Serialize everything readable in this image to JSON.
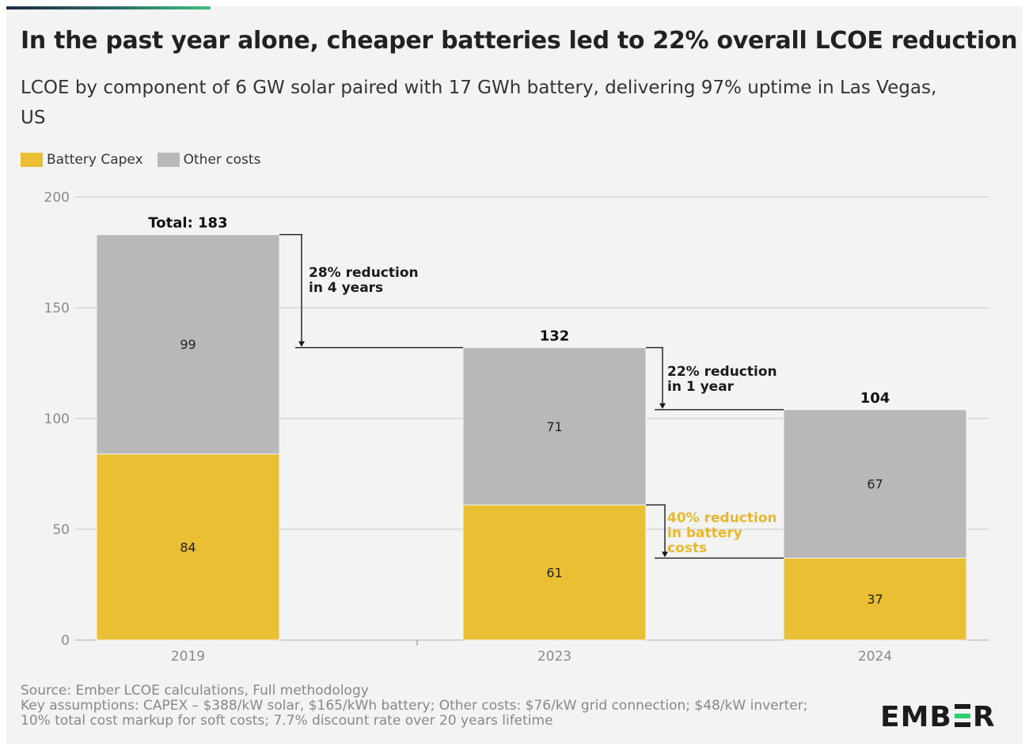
{
  "header": {
    "title": "In the past year alone, cheaper batteries led to 22% overall LCOE reduction",
    "subtitle": "LCOE by component of 6 GW solar paired with 17 GWh battery, delivering 97% uptime in Las Vegas, US"
  },
  "legend": [
    {
      "label": "Battery Capex",
      "color": "#ebbf33"
    },
    {
      "label": "Other costs",
      "color": "#b8b8b8"
    }
  ],
  "chart_data": {
    "type": "bar",
    "stacked": true,
    "categories": [
      "2019",
      "2023",
      "2024"
    ],
    "series": [
      {
        "name": "Battery Capex",
        "values": [
          84,
          61,
          37
        ],
        "color": "#ebbf33"
      },
      {
        "name": "Other costs",
        "values": [
          99,
          71,
          67
        ],
        "color": "#b8b8b8"
      }
    ],
    "totals": [
      183,
      132,
      104
    ],
    "total_labels": [
      "Total: 183",
      "132",
      "104"
    ],
    "ylim": [
      0,
      200
    ],
    "yticks": [
      0,
      50,
      100,
      150,
      200
    ],
    "grid": true,
    "legend_position": "top-left",
    "annotations": [
      {
        "text": "28% reduction\nin 4 years",
        "color": "#1b1b1b",
        "from_value": 183,
        "to_value": 132,
        "between": [
          0,
          1
        ]
      },
      {
        "text": "22% reduction\nin 1 year",
        "color": "#1b1b1b",
        "from_value": 132,
        "to_value": 104,
        "between": [
          1,
          2
        ]
      },
      {
        "text": "40% reduction\nin battery\ncosts",
        "color": "#e8b72a",
        "from_value": 61,
        "to_value": 37,
        "between": [
          1,
          2
        ]
      }
    ]
  },
  "footer": {
    "source": "Source: Ember LCOE calculations, Full methodology",
    "assumptions": "Key assumptions: CAPEX – $388/kW solar, $165/kWh battery; Other costs: $76/kW grid connection; $48/kW inverter; 10% total cost markup for soft costs; 7.7% discount rate over 20 years lifetime"
  },
  "brand": {
    "logo_text_left": "EMB",
    "logo_text_right": "R",
    "logo_accent_color": "#2ecf70"
  }
}
